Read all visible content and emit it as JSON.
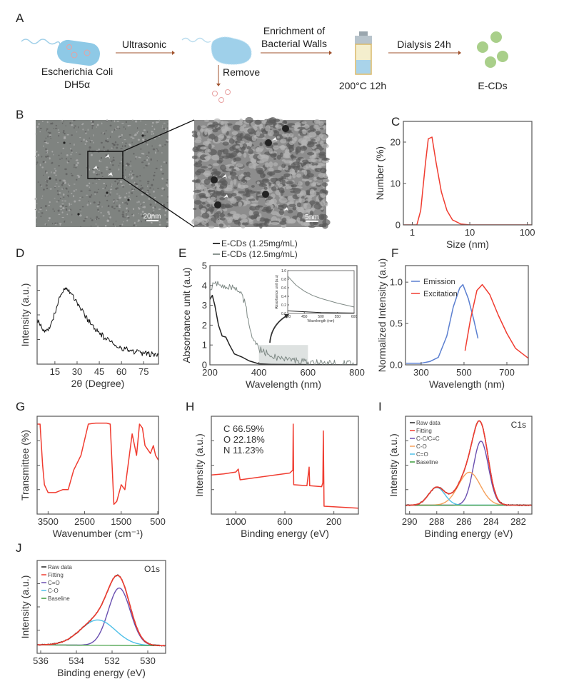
{
  "figure": {
    "panel_labels": [
      "A",
      "B",
      "C",
      "D",
      "E",
      "F",
      "G",
      "H",
      "I",
      "J"
    ],
    "schematic": {
      "bacterium_label_1": "Escherichia Coli",
      "bacterium_label_2": "DH5α",
      "step1": "Ultrasonic",
      "remove": "Remove",
      "step2_line1": "Enrichment of",
      "step2_line2": "Bacterial Walls",
      "reaction": "200°C 12h",
      "step3": "Dialysis 24h",
      "product": "E-CDs",
      "colors": {
        "bacterium": "#8ec9e6",
        "arrow": "#a0522d",
        "dots": "#a9cf8a",
        "debris": "#e8a0a0"
      }
    },
    "tem": {
      "scale_left": "20nm",
      "scale_right": "5nm"
    }
  },
  "chart_data": [
    {
      "id": "C",
      "type": "line",
      "xlabel": "Size (nm)",
      "ylabel": "Number (%)",
      "xscale": "log",
      "xlim": [
        0.7,
        120
      ],
      "ylim": [
        0,
        25
      ],
      "xticks": [
        1,
        10,
        100
      ],
      "yticks": [
        0,
        10,
        20
      ],
      "grid": false,
      "series": [
        {
          "color": "#f03c30",
          "points": [
            [
              0.7,
              0
            ],
            [
              1.2,
              0
            ],
            [
              1.4,
              3.5
            ],
            [
              1.7,
              15
            ],
            [
              1.9,
              20.8
            ],
            [
              2.2,
              21.2
            ],
            [
              2.6,
              15
            ],
            [
              3.2,
              8
            ],
            [
              4,
              3.5
            ],
            [
              5,
              1.2
            ],
            [
              7,
              0.2
            ],
            [
              10,
              0
            ],
            [
              120,
              0
            ]
          ]
        }
      ]
    },
    {
      "id": "D",
      "type": "line",
      "xlabel": "2θ (Degree)",
      "ylabel": "Intensity (a.u.)",
      "xlim": [
        3,
        85
      ],
      "ylim": [
        0,
        1.2
      ],
      "xticks": [
        15,
        30,
        45,
        60,
        75
      ],
      "yticks": [],
      "grid": false,
      "series": [
        {
          "color": "#111",
          "noisy": true,
          "points": [
            [
              3,
              0.55
            ],
            [
              6,
              0.45
            ],
            [
              9,
              0.4
            ],
            [
              12,
              0.47
            ],
            [
              15,
              0.62
            ],
            [
              18,
              0.82
            ],
            [
              21,
              0.92
            ],
            [
              23,
              0.93
            ],
            [
              26,
              0.86
            ],
            [
              30,
              0.75
            ],
            [
              35,
              0.6
            ],
            [
              40,
              0.48
            ],
            [
              45,
              0.38
            ],
            [
              50,
              0.3
            ],
            [
              55,
              0.24
            ],
            [
              60,
              0.2
            ],
            [
              65,
              0.17
            ],
            [
              70,
              0.15
            ],
            [
              75,
              0.13
            ],
            [
              80,
              0.12
            ],
            [
              85,
              0.11
            ]
          ]
        }
      ]
    },
    {
      "id": "E",
      "type": "line",
      "xlabel": "Wavelength (nm)",
      "ylabel": "Absorbance unit (a.u)",
      "xlim": [
        200,
        800
      ],
      "ylim": [
        0,
        5
      ],
      "xticks": [
        200,
        400,
        600,
        800
      ],
      "yticks": [
        0,
        1,
        2,
        3,
        4,
        5
      ],
      "grid": false,
      "legend": "top-outside",
      "highlight": {
        "x": [
          400,
          600
        ],
        "y": [
          0,
          1
        ]
      },
      "series": [
        {
          "name": "E-CDs (1.25mg/mL)",
          "color": "#222",
          "points": [
            [
              200,
              3.3
            ],
            [
              210,
              3.5
            ],
            [
              220,
              3.0
            ],
            [
              235,
              2.0
            ],
            [
              250,
              1.45
            ],
            [
              265,
              1.4
            ],
            [
              280,
              1.0
            ],
            [
              300,
              0.55
            ],
            [
              330,
              0.4
            ],
            [
              360,
              0.2
            ],
            [
              400,
              0.05
            ],
            [
              450,
              0.02
            ],
            [
              800,
              0
            ]
          ]
        },
        {
          "name": "E-CDs (12.5mg/mL)",
          "color": "#7f8a86",
          "noisy": true,
          "points": [
            [
              200,
              3.8
            ],
            [
              220,
              4.1
            ],
            [
              260,
              4.0
            ],
            [
              300,
              3.9
            ],
            [
              330,
              3.6
            ],
            [
              345,
              3.0
            ],
            [
              360,
              2.0
            ],
            [
              380,
              1.2
            ],
            [
              400,
              0.8
            ],
            [
              450,
              0.45
            ],
            [
              500,
              0.3
            ],
            [
              600,
              0.15
            ],
            [
              700,
              0.07
            ],
            [
              800,
              0.05
            ]
          ]
        }
      ],
      "inset": {
        "xlabel": "Wavelength (nm)",
        "ylabel": "Absorbance unit (a.u)",
        "xlim": [
          400,
          600
        ],
        "ylim": [
          0,
          1
        ],
        "xticks": [
          400,
          450,
          500,
          550,
          600
        ],
        "yticks": [
          0,
          0.2,
          0.4,
          0.6,
          0.8,
          1.0
        ],
        "series": [
          {
            "color": "#222",
            "points": [
              [
                400,
                0.06
              ],
              [
                450,
                0.04
              ],
              [
                500,
                0.02
              ],
              [
                600,
                0.01
              ]
            ]
          },
          {
            "color": "#7f8a86",
            "points": [
              [
                400,
                0.87
              ],
              [
                425,
                0.66
              ],
              [
                450,
                0.52
              ],
              [
                475,
                0.42
              ],
              [
                500,
                0.35
              ],
              [
                550,
                0.24
              ],
              [
                600,
                0.15
              ]
            ]
          }
        ]
      }
    },
    {
      "id": "F",
      "type": "line",
      "xlabel": "Wavelength (nm)",
      "ylabel": "Normalized Intensity (a.u)",
      "xlim": [
        227,
        800
      ],
      "ylim": [
        0,
        1.2
      ],
      "xticks": [
        300,
        500,
        700
      ],
      "yticks": [
        0,
        0.5,
        1.0
      ],
      "grid": false,
      "legend": "top-left",
      "series": [
        {
          "name": "Emission",
          "color": "#5b7fd0",
          "points": [
            [
              230,
              0.02
            ],
            [
              300,
              0.02
            ],
            [
              340,
              0.04
            ],
            [
              380,
              0.09
            ],
            [
              420,
              0.35
            ],
            [
              450,
              0.7
            ],
            [
              480,
              0.93
            ],
            [
              495,
              0.97
            ],
            [
              520,
              0.8
            ],
            [
              545,
              0.55
            ],
            [
              565,
              0.32
            ]
          ]
        },
        {
          "name": "Excitation",
          "color": "#f03c30",
          "points": [
            [
              505,
              0.17
            ],
            [
              530,
              0.55
            ],
            [
              560,
              0.9
            ],
            [
              585,
              0.97
            ],
            [
              620,
              0.85
            ],
            [
              660,
              0.6
            ],
            [
              700,
              0.38
            ],
            [
              740,
              0.2
            ],
            [
              770,
              0.14
            ],
            [
              800,
              0.08
            ]
          ]
        }
      ]
    },
    {
      "id": "G",
      "type": "line",
      "xlabel": "Wavenumber (cm⁻¹)",
      "ylabel": "Transmittee (%)",
      "xlim": [
        3800,
        480
      ],
      "ylim": [
        0,
        1
      ],
      "xticks": [
        3500,
        2500,
        1500,
        500
      ],
      "yticks": [],
      "grid": false,
      "series": [
        {
          "color": "#f03c30",
          "points": [
            [
              3800,
              0.92
            ],
            [
              3720,
              0.92
            ],
            [
              3650,
              0.5
            ],
            [
              3600,
              0.3
            ],
            [
              3500,
              0.22
            ],
            [
              3300,
              0.22
            ],
            [
              3100,
              0.25
            ],
            [
              2950,
              0.25
            ],
            [
              2800,
              0.45
            ],
            [
              2600,
              0.6
            ],
            [
              2400,
              0.92
            ],
            [
              2200,
              0.93
            ],
            [
              1900,
              0.93
            ],
            [
              1800,
              0.92
            ],
            [
              1700,
              0.1
            ],
            [
              1620,
              0.13
            ],
            [
              1500,
              0.3
            ],
            [
              1400,
              0.25
            ],
            [
              1330,
              0.45
            ],
            [
              1200,
              0.82
            ],
            [
              1080,
              0.6
            ],
            [
              1000,
              0.92
            ],
            [
              920,
              0.88
            ],
            [
              850,
              0.7
            ],
            [
              700,
              0.62
            ],
            [
              620,
              0.7
            ],
            [
              560,
              0.6
            ],
            [
              480,
              0.55
            ]
          ]
        }
      ]
    },
    {
      "id": "H",
      "type": "line",
      "xlabel": "Binding energy (eV)",
      "ylabel": "Intensity (a.u.)",
      "xlim": [
        1200,
        0
      ],
      "ylim": [
        0,
        1
      ],
      "xticks": [
        1000,
        600,
        200
      ],
      "yticks": [],
      "grid": false,
      "annotations": [
        "C 66.59%",
        "O 22.18%",
        "N 11.23%"
      ],
      "series": [
        {
          "color": "#f03c30",
          "points": [
            [
              1200,
              0.4
            ],
            [
              1100,
              0.41
            ],
            [
              1000,
              0.43
            ],
            [
              980,
              0.46
            ],
            [
              965,
              0.35
            ],
            [
              560,
              0.42
            ],
            [
              535,
              0.45
            ],
            [
              532,
              0.92
            ],
            [
              528,
              0.3
            ],
            [
              420,
              0.29
            ],
            [
              402,
              0.48
            ],
            [
              397,
              0.29
            ],
            [
              300,
              0.28
            ],
            [
              290,
              0.32
            ],
            [
              286,
              0.85
            ],
            [
              280,
              0.08
            ],
            [
              0,
              0.06
            ]
          ]
        }
      ]
    },
    {
      "id": "I",
      "type": "xps",
      "title": "C1s",
      "xlabel": "Binding energy (eV)",
      "ylabel": "Intensity (a.u.)",
      "xlim": [
        290.3,
        281
      ],
      "ylim": [
        -0.1,
        1.0
      ],
      "xticks": [
        290,
        288,
        286,
        284,
        282
      ],
      "yticks": [],
      "grid": false,
      "legend": "top-left",
      "legend_entries": [
        {
          "name": "Raw data",
          "color": "#222"
        },
        {
          "name": "Fitting",
          "color": "#f03c30"
        },
        {
          "name": "C-C/C=C",
          "color": "#6a4fb0"
        },
        {
          "name": "C-O",
          "color": "#f5a05a"
        },
        {
          "name": "C=O",
          "color": "#4fc0e8"
        },
        {
          "name": "Baseline",
          "color": "#3a9a3a"
        }
      ],
      "peaks": [
        {
          "name": "C-C/C=C",
          "color": "#6a4fb0",
          "center": 284.75,
          "height": 0.72,
          "fwhm": 1.3
        },
        {
          "name": "C-O",
          "color": "#f5a05a",
          "center": 285.6,
          "height": 0.37,
          "fwhm": 1.9
        },
        {
          "name": "C=O",
          "color": "#4fc0e8",
          "center": 288.0,
          "height": 0.2,
          "fwhm": 1.4
        }
      ],
      "baseline": [
        [
          290.3,
          0.0
        ],
        [
          281,
          0.0
        ]
      ]
    },
    {
      "id": "J",
      "type": "xps",
      "title": "O1s",
      "xlabel": "Binding energy (eV)",
      "ylabel": "Intensity (a.u.)",
      "xlim": [
        536.2,
        529
      ],
      "ylim": [
        -0.1,
        1.0
      ],
      "xticks": [
        536,
        534,
        532,
        530
      ],
      "yticks": [],
      "grid": false,
      "legend": "top-left",
      "legend_entries": [
        {
          "name": "Raw data",
          "color": "#222"
        },
        {
          "name": "Fitting",
          "color": "#f03c30"
        },
        {
          "name": "C=O",
          "color": "#6a4fb0"
        },
        {
          "name": "C-O",
          "color": "#4fc0e8"
        },
        {
          "name": "Baseline",
          "color": "#3a9a3a"
        }
      ],
      "peaks": [
        {
          "name": "C=O",
          "color": "#6a4fb0",
          "center": 531.6,
          "height": 0.68,
          "fwhm": 1.45
        },
        {
          "name": "C-O",
          "color": "#4fc0e8",
          "center": 532.8,
          "height": 0.3,
          "fwhm": 2.3
        }
      ],
      "baseline": [
        [
          536.2,
          0.0
        ],
        [
          529,
          -0.01
        ]
      ]
    }
  ]
}
